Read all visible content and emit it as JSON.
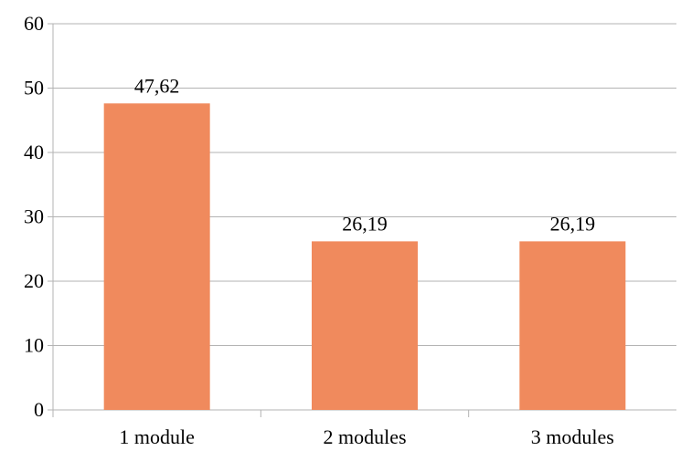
{
  "chart_data": {
    "type": "bar",
    "title": "",
    "xlabel": "",
    "ylabel": "",
    "categories": [
      "1 module",
      "2 modules",
      "3 modules"
    ],
    "values": [
      47.62,
      26.19,
      26.19
    ],
    "data_labels": [
      "47,62",
      "26,19",
      "26,19"
    ],
    "ylim": [
      0,
      60
    ],
    "yticks": [
      0,
      10,
      20,
      30,
      40,
      50,
      60
    ],
    "ytick_labels": [
      "0",
      "10",
      "20",
      "30",
      "40",
      "50",
      "60"
    ],
    "grid": true,
    "legend": "none",
    "bar_color": "#f08a5d"
  }
}
